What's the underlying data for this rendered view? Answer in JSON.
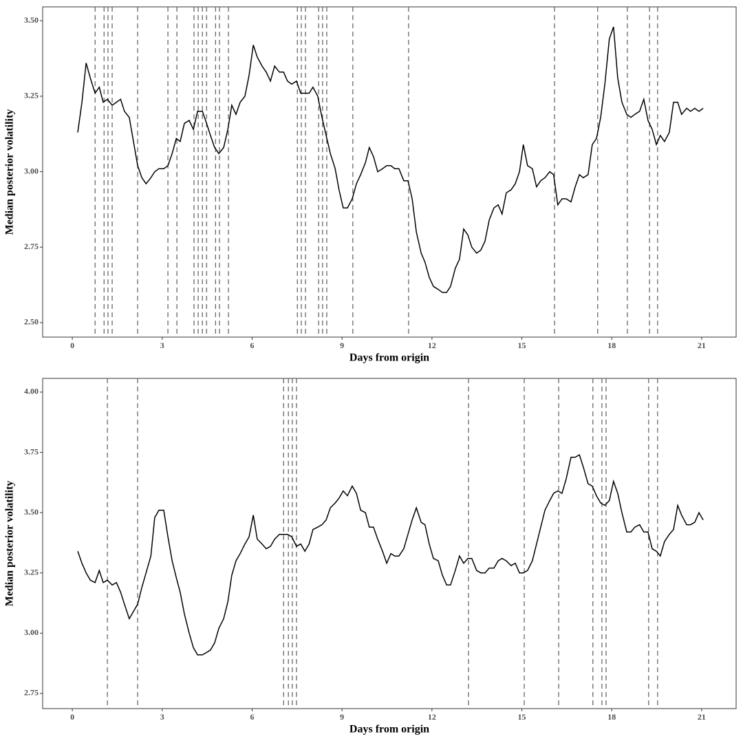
{
  "chart_data": [
    {
      "type": "line",
      "xlabel": "Days from origin",
      "ylabel": "Median posterior volatility",
      "xlim": [
        -0.99,
        22.15
      ],
      "ylim": [
        2.452,
        3.546
      ],
      "xticks": [
        0,
        3,
        6,
        9,
        12,
        15,
        18,
        21
      ],
      "yticks": [
        {
          "value": 2.5,
          "label": "2.50"
        },
        2.75,
        {
          "value": 3.0,
          "label": "3.00"
        },
        3.25,
        {
          "value": 3.5,
          "label": "3.50"
        }
      ],
      "color": "#000000",
      "vline_color": "#666666",
      "vlines": [
        0.76,
        1.06,
        1.19,
        1.33,
        2.18,
        3.19,
        3.49,
        4.06,
        4.2,
        4.34,
        4.48,
        4.78,
        4.91,
        5.21,
        7.51,
        7.64,
        7.78,
        8.22,
        8.35,
        8.49,
        9.36,
        11.22,
        16.09,
        17.53,
        18.52,
        19.26,
        19.53
      ],
      "x": [
        0.18,
        0.32,
        0.46,
        0.6,
        0.76,
        0.9,
        1.03,
        1.17,
        1.33,
        1.47,
        1.61,
        1.74,
        1.9,
        2.04,
        2.18,
        2.32,
        2.46,
        2.62,
        2.75,
        2.89,
        3.05,
        3.19,
        3.33,
        3.47,
        3.6,
        3.74,
        3.9,
        4.04,
        4.18,
        4.34,
        4.48,
        4.61,
        4.75,
        4.89,
        5.05,
        5.19,
        5.32,
        5.46,
        5.6,
        5.76,
        5.9,
        6.04,
        6.17,
        6.33,
        6.47,
        6.61,
        6.75,
        6.91,
        7.05,
        7.18,
        7.32,
        7.48,
        7.62,
        7.76,
        7.9,
        8.03,
        8.19,
        8.33,
        8.47,
        8.61,
        8.77,
        8.9,
        9.04,
        9.18,
        9.34,
        9.48,
        9.62,
        9.78,
        9.91,
        10.05,
        10.19,
        10.35,
        10.49,
        10.63,
        10.76,
        10.9,
        11.06,
        11.2,
        11.34,
        11.48,
        11.64,
        11.77,
        11.91,
        12.05,
        12.21,
        12.35,
        12.49,
        12.62,
        12.78,
        12.92,
        13.06,
        13.2,
        13.33,
        13.49,
        13.63,
        13.77,
        13.91,
        14.07,
        14.21,
        14.34,
        14.48,
        14.64,
        14.78,
        14.92,
        15.05,
        15.19,
        15.35,
        15.49,
        15.63,
        15.77,
        15.93,
        16.06,
        16.2,
        16.34,
        16.48,
        16.64,
        16.78,
        16.92,
        17.05,
        17.21,
        17.35,
        17.49,
        17.63,
        17.77,
        17.92,
        18.06,
        18.2,
        18.34,
        18.5,
        18.64,
        18.77,
        18.93,
        19.07,
        19.21,
        19.35,
        19.49,
        19.62,
        19.76,
        19.92,
        20.06,
        20.2,
        20.33,
        20.5,
        20.63,
        20.77,
        20.91,
        21.05
      ],
      "values": [
        3.13,
        3.23,
        3.36,
        3.31,
        3.26,
        3.28,
        3.23,
        3.24,
        3.22,
        3.23,
        3.24,
        3.2,
        3.18,
        3.1,
        3.02,
        2.98,
        2.96,
        2.98,
        3.0,
        3.01,
        3.01,
        3.02,
        3.06,
        3.11,
        3.1,
        3.16,
        3.17,
        3.14,
        3.2,
        3.2,
        3.16,
        3.12,
        3.08,
        3.06,
        3.08,
        3.14,
        3.22,
        3.19,
        3.23,
        3.25,
        3.32,
        3.42,
        3.38,
        3.35,
        3.33,
        3.3,
        3.35,
        3.33,
        3.33,
        3.3,
        3.29,
        3.3,
        3.26,
        3.26,
        3.26,
        3.28,
        3.25,
        3.18,
        3.12,
        3.06,
        3.01,
        2.94,
        2.88,
        2.88,
        2.91,
        2.96,
        2.99,
        3.03,
        3.08,
        3.05,
        3.0,
        3.01,
        3.02,
        3.02,
        3.01,
        3.01,
        2.97,
        2.97,
        2.91,
        2.8,
        2.73,
        2.7,
        2.65,
        2.62,
        2.61,
        2.6,
        2.6,
        2.62,
        2.68,
        2.71,
        2.81,
        2.79,
        2.75,
        2.73,
        2.74,
        2.77,
        2.84,
        2.88,
        2.89,
        2.86,
        2.93,
        2.94,
        2.96,
        3.0,
        3.09,
        3.02,
        3.01,
        2.95,
        2.97,
        2.98,
        3.0,
        2.99,
        2.89,
        2.91,
        2.91,
        2.9,
        2.95,
        2.99,
        2.98,
        2.99,
        3.09,
        3.11,
        3.18,
        3.29,
        3.44,
        3.48,
        3.31,
        3.23,
        3.19,
        3.18,
        3.19,
        3.2,
        3.24,
        3.17,
        3.14,
        3.09,
        3.12,
        3.1,
        3.13,
        3.23,
        3.23,
        3.19,
        3.21,
        3.2,
        3.21,
        3.2,
        3.21
      ]
    },
    {
      "type": "line",
      "xlabel": "Days from origin",
      "ylabel": "Median posterior volatility",
      "xlim": [
        -0.99,
        22.15
      ],
      "ylim": [
        2.687,
        4.057
      ],
      "xticks": [
        0,
        3,
        6,
        9,
        12,
        15,
        18,
        21
      ],
      "yticks": [
        2.75,
        {
          "value": 3.0,
          "label": "3.00"
        },
        3.25,
        {
          "value": 3.5,
          "label": "3.50"
        },
        3.75,
        {
          "value": 4.0,
          "label": "4.00"
        }
      ],
      "color": "#000000",
      "vline_color": "#666666",
      "vlines": [
        1.17,
        2.18,
        7.05,
        7.21,
        7.34,
        7.48,
        13.22,
        15.08,
        16.23,
        17.37,
        17.67,
        17.81,
        19.23,
        19.53
      ],
      "x": [
        0.18,
        0.32,
        0.46,
        0.6,
        0.76,
        0.9,
        1.03,
        1.17,
        1.33,
        1.47,
        1.61,
        1.74,
        1.9,
        2.04,
        2.18,
        2.32,
        2.46,
        2.62,
        2.75,
        2.89,
        3.05,
        3.19,
        3.33,
        3.47,
        3.6,
        3.74,
        3.9,
        4.04,
        4.18,
        4.34,
        4.48,
        4.61,
        4.75,
        4.89,
        5.05,
        5.19,
        5.32,
        5.46,
        5.6,
        5.76,
        5.9,
        6.04,
        6.17,
        6.33,
        6.47,
        6.61,
        6.75,
        6.91,
        7.05,
        7.18,
        7.32,
        7.48,
        7.62,
        7.76,
        7.9,
        8.03,
        8.19,
        8.33,
        8.47,
        8.61,
        8.77,
        8.9,
        9.04,
        9.18,
        9.34,
        9.48,
        9.62,
        9.78,
        9.91,
        10.05,
        10.19,
        10.35,
        10.49,
        10.63,
        10.76,
        10.9,
        11.06,
        11.2,
        11.34,
        11.48,
        11.64,
        11.77,
        11.91,
        12.05,
        12.21,
        12.35,
        12.49,
        12.62,
        12.78,
        12.92,
        13.06,
        13.2,
        13.33,
        13.49,
        13.63,
        13.77,
        13.91,
        14.07,
        14.21,
        14.34,
        14.48,
        14.64,
        14.78,
        14.92,
        15.05,
        15.19,
        15.35,
        15.49,
        15.63,
        15.77,
        15.93,
        16.06,
        16.2,
        16.34,
        16.48,
        16.64,
        16.78,
        16.92,
        17.05,
        17.21,
        17.35,
        17.49,
        17.63,
        17.77,
        17.92,
        18.06,
        18.2,
        18.34,
        18.5,
        18.64,
        18.77,
        18.93,
        19.07,
        19.21,
        19.35,
        19.49,
        19.62,
        19.76,
        19.92,
        20.06,
        20.2,
        20.33,
        20.5,
        20.63,
        20.77,
        20.91,
        21.05
      ],
      "values": [
        3.34,
        3.29,
        3.25,
        3.22,
        3.21,
        3.26,
        3.21,
        3.22,
        3.2,
        3.21,
        3.17,
        3.12,
        3.06,
        3.09,
        3.12,
        3.19,
        3.25,
        3.32,
        3.48,
        3.51,
        3.51,
        3.4,
        3.3,
        3.23,
        3.17,
        3.08,
        3.0,
        2.94,
        2.91,
        2.91,
        2.92,
        2.93,
        2.96,
        3.02,
        3.06,
        3.13,
        3.24,
        3.3,
        3.33,
        3.37,
        3.4,
        3.49,
        3.39,
        3.37,
        3.35,
        3.36,
        3.39,
        3.41,
        3.41,
        3.41,
        3.4,
        3.36,
        3.37,
        3.34,
        3.37,
        3.43,
        3.44,
        3.45,
        3.47,
        3.52,
        3.54,
        3.56,
        3.59,
        3.57,
        3.61,
        3.58,
        3.51,
        3.5,
        3.44,
        3.44,
        3.39,
        3.34,
        3.29,
        3.33,
        3.32,
        3.32,
        3.35,
        3.41,
        3.47,
        3.52,
        3.46,
        3.45,
        3.37,
        3.31,
        3.3,
        3.24,
        3.2,
        3.2,
        3.26,
        3.32,
        3.29,
        3.31,
        3.31,
        3.26,
        3.25,
        3.25,
        3.27,
        3.27,
        3.3,
        3.31,
        3.3,
        3.28,
        3.29,
        3.25,
        3.25,
        3.26,
        3.3,
        3.37,
        3.44,
        3.51,
        3.55,
        3.58,
        3.59,
        3.58,
        3.64,
        3.73,
        3.73,
        3.74,
        3.69,
        3.62,
        3.61,
        3.57,
        3.54,
        3.53,
        3.55,
        3.63,
        3.58,
        3.5,
        3.42,
        3.42,
        3.44,
        3.45,
        3.42,
        3.42,
        3.35,
        3.34,
        3.32,
        3.38,
        3.41,
        3.43,
        3.53,
        3.49,
        3.45,
        3.45,
        3.46,
        3.5,
        3.47
      ]
    }
  ]
}
